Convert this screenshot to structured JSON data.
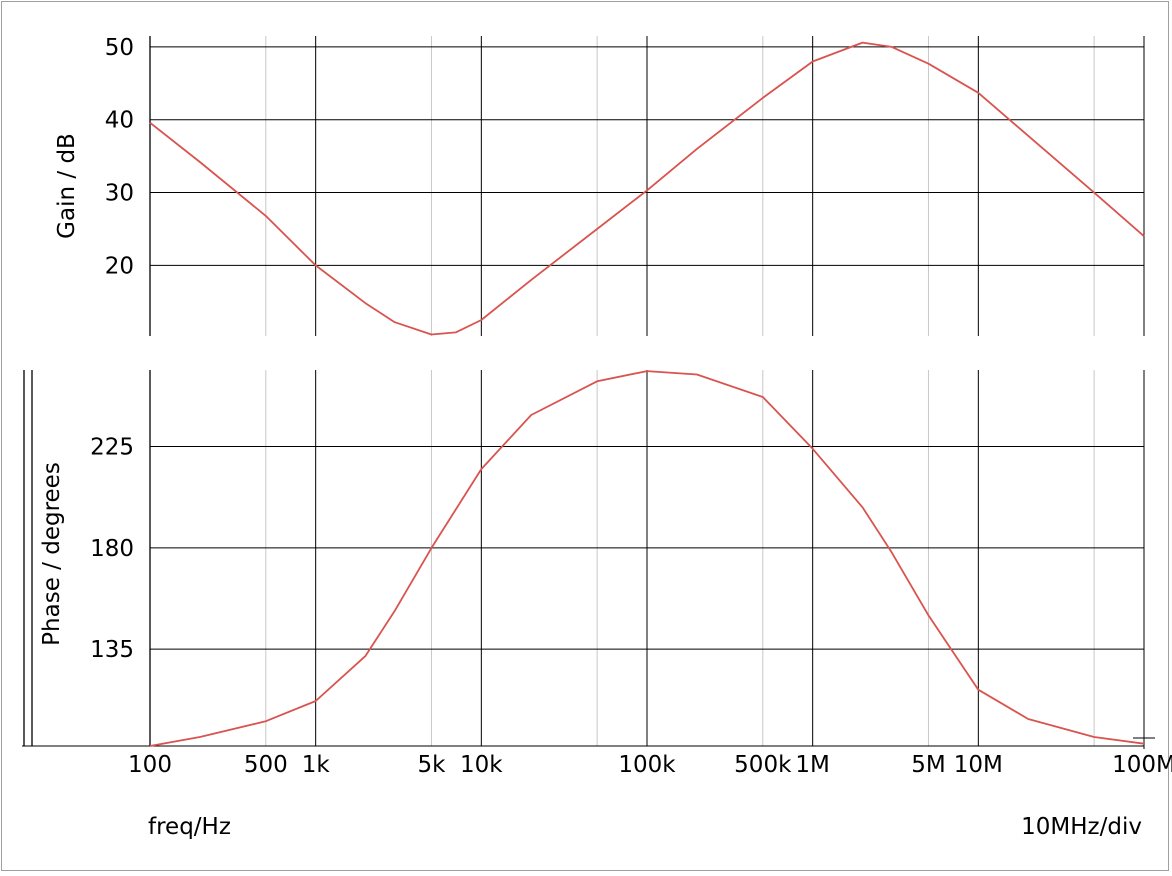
{
  "chart_data": [
    {
      "type": "line",
      "ylabel": "Gain / dB",
      "xscale": "log",
      "xlim": [
        100,
        100000000
      ],
      "ylim": [
        10.3,
        51.5
      ],
      "yticks": [
        20,
        30,
        40,
        50
      ],
      "grid": true,
      "color": "#d9534f",
      "series": [
        {
          "x": [
            100,
            200,
            500,
            1000,
            2000,
            3000,
            5000,
            7000,
            10000,
            20000,
            50000,
            100000,
            200000,
            500000,
            1000000,
            2000000,
            3000000,
            5000000,
            10000000,
            20000000,
            50000000,
            100000000
          ],
          "y": [
            39.6,
            34.2,
            26.8,
            20.0,
            14.8,
            12.2,
            10.5,
            10.8,
            12.5,
            18.0,
            25.0,
            30.3,
            36.0,
            43.0,
            48.0,
            50.6,
            50.0,
            47.7,
            43.7,
            37.8,
            30.0,
            24.0
          ]
        }
      ]
    },
    {
      "type": "line",
      "ylabel": "Phase / degrees",
      "xscale": "log",
      "xlim": [
        100,
        100000000
      ],
      "ylim": [
        92,
        259
      ],
      "yticks": [
        135,
        180,
        225
      ],
      "grid": true,
      "color": "#d9534f",
      "series": [
        {
          "x": [
            100,
            200,
            500,
            1000,
            2000,
            3000,
            5000,
            10000,
            20000,
            50000,
            100000,
            200000,
            500000,
            1000000,
            2000000,
            3000000,
            5000000,
            10000000,
            20000000,
            50000000,
            100000000
          ],
          "y": [
            92,
            96,
            103,
            112,
            132,
            152,
            180,
            215,
            239,
            254,
            258.5,
            257,
            247,
            224,
            198,
            178,
            150,
            117,
            104,
            96,
            93
          ]
        }
      ]
    }
  ],
  "xtick_values": [
    100,
    500,
    1000,
    5000,
    10000,
    100000,
    500000,
    1000000,
    5000000,
    10000000,
    100000000
  ],
  "xtick_labels": [
    "100",
    "500",
    "1k",
    "5k",
    "10k",
    "100k",
    "500k",
    "1M",
    "5M",
    "10M",
    "100M"
  ],
  "footer": {
    "xlabel": "freq/Hz",
    "division": "10MHz/div"
  }
}
